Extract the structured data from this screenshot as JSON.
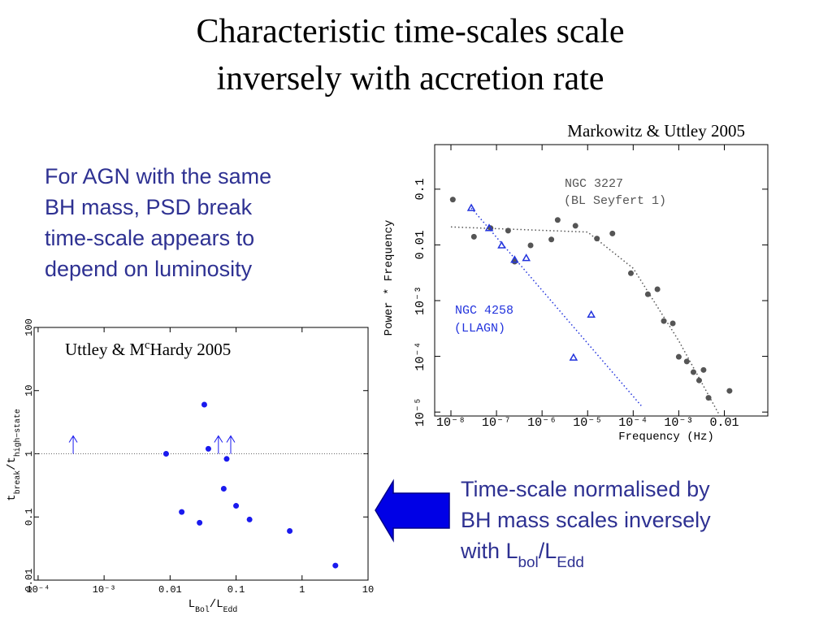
{
  "title": [
    "Characteristic time-scales scale",
    "inversely with accretion rate"
  ],
  "left_text": [
    "For AGN with the same",
    "BH mass, PSD break",
    "time-scale appears to",
    "depend on luminosity"
  ],
  "right_text": [
    [
      {
        "t": "Time-scale normalised by"
      }
    ],
    [
      {
        "t": "BH mass scales inversely"
      }
    ],
    [
      {
        "t": "with L"
      },
      {
        "sub": "bol"
      },
      {
        "t": "/L"
      },
      {
        "sub": "Edd"
      }
    ]
  ],
  "chart_data": [
    {
      "type": "scatter",
      "title": [
        {
          "t": "Markowitz & Uttley 2005"
        }
      ],
      "xlabel": [
        {
          "t": "Frequency (Hz)"
        }
      ],
      "ylabel": [
        {
          "t": "Power * Frequency"
        }
      ],
      "xscale": "log",
      "yscale": "log",
      "xlim": [
        4.4e-09,
        0.09
      ],
      "ylim": [
        8.5e-06,
        0.63
      ],
      "xticks": [
        {
          "value": 1e-08,
          "label": "10⁻⁸"
        },
        {
          "value": 1e-07,
          "label": "10⁻⁷"
        },
        {
          "value": 1e-06,
          "label": "10⁻⁶"
        },
        {
          "value": 1e-05,
          "label": "10⁻⁵"
        },
        {
          "value": 0.0001,
          "label": "10⁻⁴"
        },
        {
          "value": 0.001,
          "label": "10⁻³"
        },
        0.01
      ],
      "yticks": [
        0.1,
        0.01,
        {
          "value": 0.001,
          "label": "10⁻³"
        },
        {
          "value": 0.0001,
          "label": "10⁻⁴"
        },
        {
          "value": 1e-05,
          "label": "10⁻⁵"
        }
      ],
      "series": [
        {
          "name": "NGC 3227",
          "note": "(BL Seyfert 1)",
          "color": "#555555",
          "marker": "circle",
          "x": [
            1.1e-08,
            3.2e-08,
            7.4e-08,
            1.8e-07,
            2.5e-07,
            5.6e-07,
            1.6e-06,
            2.2e-06,
            5.4e-06,
            1.6e-05,
            3.5e-05,
            8.9e-05,
            0.00021,
            0.00034,
            0.00047,
            0.00074,
            0.001,
            0.0015,
            0.0021,
            0.0028,
            0.0035,
            0.0045,
            0.013
          ],
          "values": [
            0.065,
            0.014,
            0.02,
            0.018,
            0.005,
            0.0098,
            0.0125,
            0.028,
            0.022,
            0.013,
            0.016,
            0.0031,
            0.0013,
            0.0016,
            0.00043,
            0.00039,
            9.8e-05,
            8.1e-05,
            5.2e-05,
            3.7e-05,
            5.7e-05,
            1.8e-05,
            2.4e-05
          ]
        },
        {
          "name": "NGC 4258",
          "note": "(LLAGN)",
          "color": "#2233dd",
          "marker": "triangle",
          "x": [
            2.8e-08,
            6.9e-08,
            1.3e-07,
            2.5e-07,
            4.5e-07,
            4.9e-06,
            1.2e-05
          ],
          "values": [
            0.046,
            0.02,
            0.0098,
            0.0054,
            0.0058,
            9.5e-05,
            0.00056
          ]
        }
      ],
      "lines": [
        {
          "color": "#555555",
          "x": [
            1e-08,
            1e-05,
            0.0001,
            0.001,
            0.008
          ],
          "values": [
            0.021,
            0.017,
            0.0038,
            0.00019,
            8.5e-06
          ]
        },
        {
          "color": "#2233dd",
          "x": [
            2.8e-08,
            0.00015
          ],
          "values": [
            0.046,
            1.3e-05
          ]
        }
      ]
    },
    {
      "type": "scatter",
      "title": [
        {
          "t": "Uttley & M"
        },
        {
          "sup": "c"
        },
        {
          "t": "Hardy 2005"
        }
      ],
      "xlabel": [
        {
          "t": "L"
        },
        {
          "sub": "Bol"
        },
        {
          "t": "/L"
        },
        {
          "sub": "Edd"
        }
      ],
      "ylabel": [
        {
          "t": "t"
        },
        {
          "sub": "break"
        },
        {
          "t": "/t"
        },
        {
          "sub": "high−state"
        }
      ],
      "xscale": "log",
      "yscale": "log",
      "xlim": [
        8.7e-05,
        10
      ],
      "ylim": [
        0.01,
        100
      ],
      "xticks": [
        {
          "value": 0.0001,
          "label": "10⁻⁴"
        },
        {
          "value": 0.001,
          "label": "10⁻³"
        },
        0.01,
        0.1,
        1,
        10
      ],
      "yticks": [
        100,
        10,
        1,
        0.1,
        0.01
      ],
      "hline": 1,
      "series": [
        {
          "color": "#1a1aee",
          "marker": "circle",
          "x": [
            0.0087,
            0.015,
            0.028,
            0.033,
            0.038,
            0.065,
            0.072,
            0.1,
            0.16,
            0.65,
            3.2
          ],
          "values": [
            1.0,
            0.12,
            0.081,
            6.0,
            1.2,
            0.28,
            0.83,
            0.15,
            0.091,
            0.06,
            0.017
          ]
        },
        {
          "color": "#1a1aee",
          "marker": "arrow-up",
          "x": [
            0.00034,
            0.054,
            0.083
          ],
          "values": [
            1.0,
            1.0,
            1.0
          ]
        }
      ]
    }
  ]
}
